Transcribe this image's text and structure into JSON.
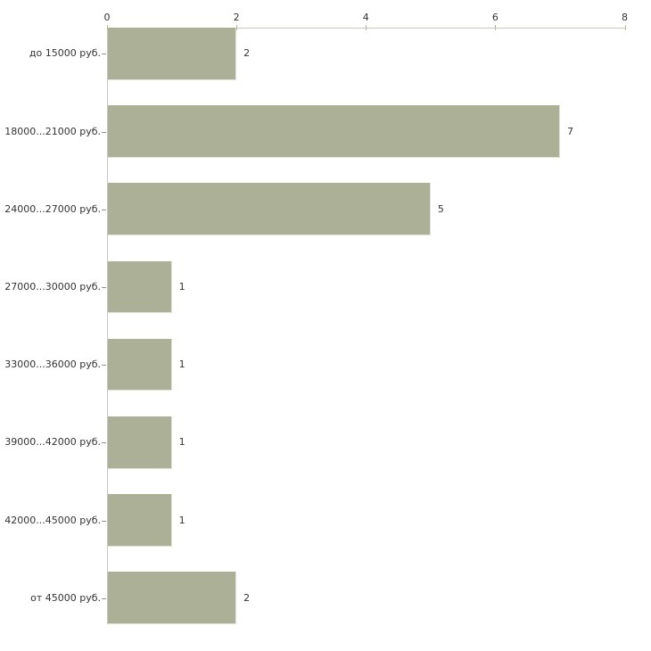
{
  "chart_data": {
    "type": "bar",
    "orientation": "horizontal",
    "title": "",
    "xlabel": "",
    "ylabel": "",
    "categories": [
      "до 15000 руб.",
      "18000...21000 руб.",
      "24000...27000 руб.",
      "27000...30000 руб.",
      "33000...36000 руб.",
      "39000...42000 руб.",
      "42000...45000 руб.",
      "от 45000 руб."
    ],
    "values": [
      2,
      7,
      5,
      1,
      1,
      1,
      1,
      2
    ],
    "value_labels": [
      "2",
      "7",
      "5",
      "1",
      "1",
      "1",
      "1",
      "2"
    ],
    "x_ticks": [
      0,
      2,
      4,
      6,
      8
    ],
    "x_tick_labels": [
      "0",
      "2",
      "4",
      "6",
      "8"
    ],
    "xlim": [
      0,
      8
    ],
    "grid": false,
    "legend": false,
    "axis_position": "top",
    "colors": {
      "bar_fill": "#abb096",
      "bar_edge": "#e2e4d7",
      "x_axis_line": "#c8c8c0",
      "y_axis_line": "#c6c6c6",
      "x_tick_mark": "#bcb88e",
      "y_tick_mark": "#8f8f8f",
      "label_text": "#333333",
      "background": "#ffffff"
    }
  }
}
